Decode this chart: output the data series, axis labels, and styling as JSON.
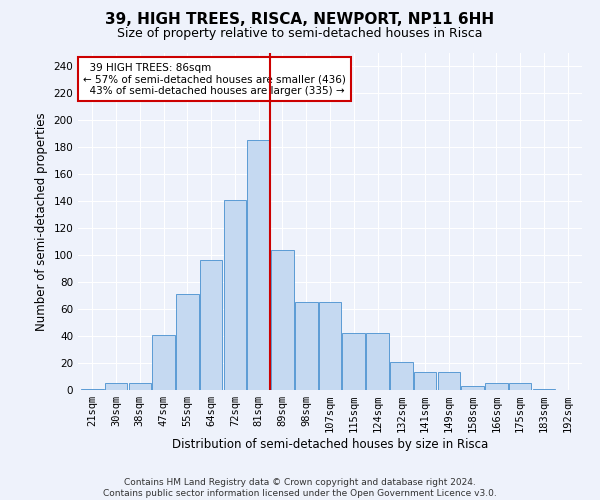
{
  "title": "39, HIGH TREES, RISCA, NEWPORT, NP11 6HH",
  "subtitle": "Size of property relative to semi-detached houses in Risca",
  "xlabel": "Distribution of semi-detached houses by size in Risca",
  "ylabel": "Number of semi-detached properties",
  "bin_labels": [
    "21sqm",
    "30sqm",
    "38sqm",
    "47sqm",
    "55sqm",
    "64sqm",
    "72sqm",
    "81sqm",
    "89sqm",
    "98sqm",
    "107sqm",
    "115sqm",
    "124sqm",
    "132sqm",
    "141sqm",
    "149sqm",
    "158sqm",
    "166sqm",
    "175sqm",
    "183sqm",
    "192sqm"
  ],
  "bar_values": [
    1,
    5,
    5,
    41,
    71,
    96,
    141,
    185,
    104,
    65,
    65,
    42,
    42,
    21,
    13,
    13,
    3,
    5,
    5,
    1,
    0
  ],
  "bar_color": "#c5d9f1",
  "bar_edge_color": "#5b9bd5",
  "property_label": "39 HIGH TREES: 86sqm",
  "pct_smaller": "57% of semi-detached houses are smaller (436)",
  "pct_larger": "43% of semi-detached houses are larger (335)",
  "annotation_box_color": "#ffffff",
  "annotation_border_color": "#cc0000",
  "line_color": "#cc0000",
  "ylim": [
    0,
    250
  ],
  "yticks": [
    0,
    20,
    40,
    60,
    80,
    100,
    120,
    140,
    160,
    180,
    200,
    220,
    240
  ],
  "footer": "Contains HM Land Registry data © Crown copyright and database right 2024.\nContains public sector information licensed under the Open Government Licence v3.0.",
  "bg_color": "#eef2fb",
  "grid_color": "#ffffff",
  "title_fontsize": 11,
  "subtitle_fontsize": 9,
  "axis_label_fontsize": 8.5,
  "tick_fontsize": 7.5,
  "footer_fontsize": 6.5
}
